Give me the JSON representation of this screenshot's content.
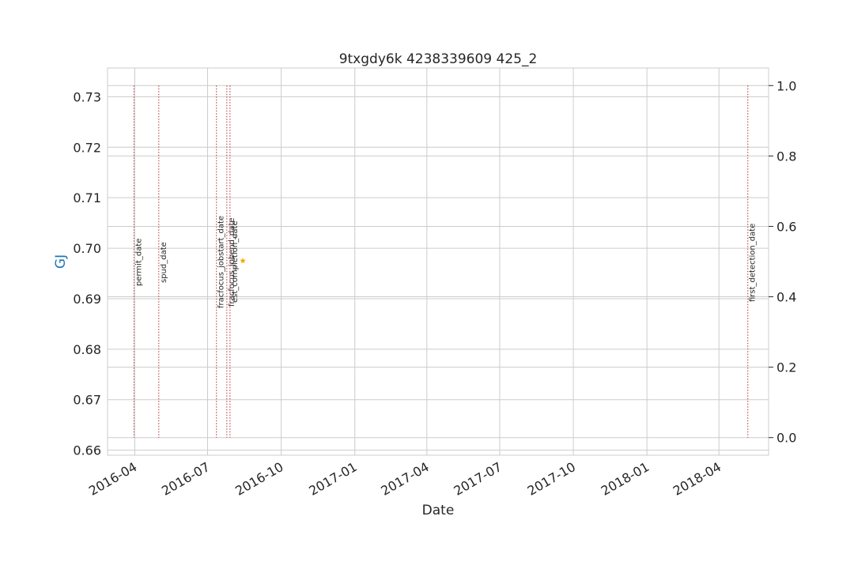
{
  "chart_data": {
    "type": "scatter",
    "title": "9txgdy6k 4238339609 425_2",
    "xlabel": "Date",
    "ylabel": "GJ",
    "xlim": [
      "2016-02-27",
      "2018-06-02"
    ],
    "ylim": [
      0.659,
      0.7357
    ],
    "right_ylim": [
      -0.05,
      1.05
    ],
    "x_ticks": [
      "2016-04",
      "2016-07",
      "2016-10",
      "2017-01",
      "2017-04",
      "2017-07",
      "2017-10",
      "2018-01",
      "2018-04"
    ],
    "y_ticks": [
      "0.66",
      "0.67",
      "0.68",
      "0.69",
      "0.70",
      "0.71",
      "0.72",
      "0.73"
    ],
    "right_y_ticks": [
      "0.0",
      "0.2",
      "0.4",
      "0.6",
      "0.8",
      "1.0"
    ],
    "grid": true,
    "series": [
      {
        "x": [
          "2016-08-14"
        ],
        "y": [
          0.6975
        ],
        "marker": "star",
        "color": "#f2a900"
      }
    ],
    "events": [
      {
        "label": "permit_date",
        "date": "2016-03-31"
      },
      {
        "label": "spud_date",
        "date": "2016-05-01"
      },
      {
        "label": "fracfocus_jobstart_date",
        "date": "2016-07-12"
      },
      {
        "label": "fracfocus_jobend_date",
        "date": "2016-07-25"
      },
      {
        "label": "est_completion_date",
        "date": "2016-07-29"
      },
      {
        "label": "first_detection_date",
        "date": "2018-05-07"
      }
    ],
    "event_color": "#c44e52"
  }
}
